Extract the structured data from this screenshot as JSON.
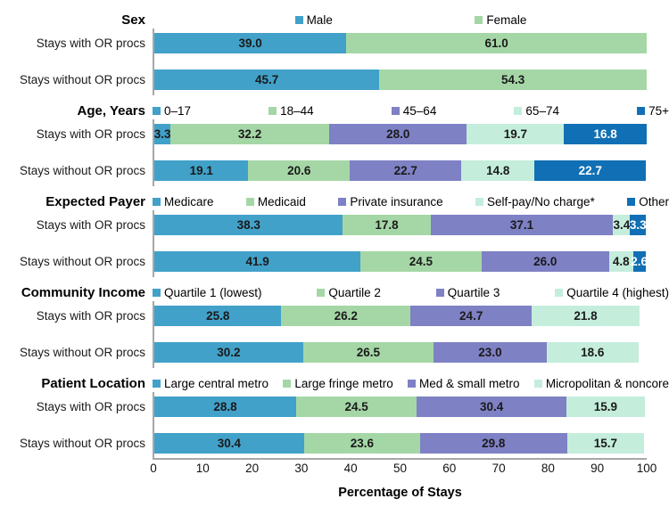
{
  "chart_data": {
    "type": "bar",
    "orientation": "horizontal",
    "stacked": true,
    "title": "",
    "xlabel": "Percentage of Stays",
    "ylabel": "",
    "xlim": [
      0,
      100
    ],
    "x_ticks": [
      0,
      10,
      20,
      30,
      40,
      50,
      60,
      70,
      80,
      90,
      100
    ],
    "grid": false,
    "legend_position": "top-of-each-section",
    "row_categories": [
      "Stays with OR procs",
      "Stays without OR procs"
    ],
    "palette": {
      "s1": "#41a1c9",
      "s2": "#a5d7a6",
      "s3": "#7e81c4",
      "s4": "#c4eddc",
      "s5": "#1170b5"
    },
    "value_text_colors": {
      "s1": "#1a1a1a",
      "s2": "#1a1a1a",
      "s3": "#1a1a1a",
      "s4": "#1a1a1a",
      "s5": "#ffffff"
    },
    "axis_line_color": "#a7a7a7",
    "sections": [
      {
        "title": "Sex",
        "series": [
          {
            "name": "Male",
            "color": "s1",
            "values": [
              39.0,
              45.7
            ]
          },
          {
            "name": "Female",
            "color": "s2",
            "values": [
              61.0,
              54.3
            ]
          }
        ]
      },
      {
        "title": "Age, Years",
        "series": [
          {
            "name": "0–17",
            "color": "s1",
            "values": [
              3.3,
              19.1
            ]
          },
          {
            "name": "18–44",
            "color": "s2",
            "values": [
              32.2,
              20.6
            ]
          },
          {
            "name": "45–64",
            "color": "s3",
            "values": [
              28.0,
              22.7
            ]
          },
          {
            "name": "65–74",
            "color": "s4",
            "values": [
              19.7,
              14.8
            ]
          },
          {
            "name": "75+",
            "color": "s5",
            "values": [
              16.8,
              22.7
            ]
          }
        ]
      },
      {
        "title": "Expected Payer",
        "series": [
          {
            "name": "Medicare",
            "color": "s1",
            "values": [
              38.3,
              41.9
            ]
          },
          {
            "name": "Medicaid",
            "color": "s2",
            "values": [
              17.8,
              24.5
            ]
          },
          {
            "name": "Private insurance",
            "color": "s3",
            "values": [
              37.1,
              26.0
            ]
          },
          {
            "name": "Self-pay/No charge*",
            "color": "s4",
            "values": [
              3.4,
              4.8
            ]
          },
          {
            "name": "Other",
            "color": "s5",
            "values": [
              3.3,
              2.6
            ]
          }
        ]
      },
      {
        "title": "Community Income",
        "series": [
          {
            "name": "Quartile 1 (lowest)",
            "color": "s1",
            "values": [
              25.8,
              30.2
            ]
          },
          {
            "name": "Quartile 2",
            "color": "s2",
            "values": [
              26.2,
              26.5
            ]
          },
          {
            "name": "Quartile 3",
            "color": "s3",
            "values": [
              24.7,
              23.0
            ]
          },
          {
            "name": "Quartile 4 (highest)",
            "color": "s4",
            "values": [
              21.8,
              18.6
            ]
          }
        ]
      },
      {
        "title": "Patient Location",
        "series": [
          {
            "name": "Large central metro",
            "color": "s1",
            "values": [
              28.8,
              30.4
            ]
          },
          {
            "name": "Large fringe metro",
            "color": "s2",
            "values": [
              24.5,
              23.6
            ]
          },
          {
            "name": "Med & small metro",
            "color": "s3",
            "values": [
              30.4,
              29.8
            ]
          },
          {
            "name": "Micropolitan & noncore",
            "color": "s4",
            "values": [
              15.9,
              15.7
            ]
          }
        ]
      }
    ]
  }
}
